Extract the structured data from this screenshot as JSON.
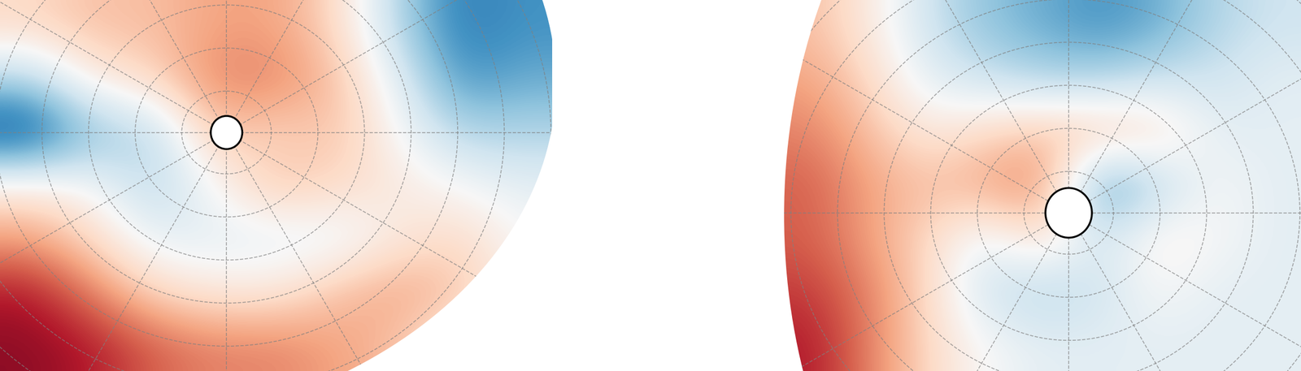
{
  "chart_data": [
    {
      "type": "heatmap",
      "grid": true,
      "tick_labels": false,
      "clim": [
        -1,
        1
      ],
      "cells": [
        [
          0.2,
          0.3,
          0.3,
          0.4,
          0.4,
          0.2,
          -0.3,
          -0.7,
          -0.6
        ],
        [
          -0.3,
          0.1,
          0.2,
          0.5,
          0.5,
          0.3,
          -0.1,
          -0.6,
          -0.5
        ],
        [
          -0.9,
          -0.4,
          -0.3,
          0.3,
          0.2,
          0.3,
          0.0,
          -0.3,
          -0.3
        ],
        [
          0.1,
          0.0,
          -0.3,
          0.0,
          0.3,
          0.2,
          0.1,
          0.0,
          -0.1
        ],
        [
          0.4,
          0.2,
          -0.1,
          -0.1,
          -0.1,
          -0.1,
          0.1,
          0.2,
          0.0
        ],
        [
          0.8,
          0.5,
          0.2,
          0.1,
          0.1,
          0.3,
          0.4,
          0.3,
          0.0
        ],
        [
          0.9,
          0.8,
          0.6,
          0.5,
          0.5,
          0.4,
          0.3,
          0.0,
          0.0
        ]
      ]
    },
    {
      "type": "heatmap",
      "grid": true,
      "tick_labels": false,
      "clim": [
        -1,
        1
      ],
      "cells": [
        [
          0.3,
          0.1,
          -0.2,
          -0.4,
          -0.5,
          -0.6,
          -0.5,
          -0.3,
          -0.2
        ],
        [
          0.4,
          0.2,
          -0.1,
          -0.2,
          -0.3,
          -0.3,
          -0.2,
          -0.2,
          -0.1
        ],
        [
          0.5,
          0.3,
          0.1,
          0.2,
          0.3,
          0.3,
          0.2,
          -0.1,
          -0.1
        ],
        [
          0.6,
          0.4,
          0.3,
          0.4,
          0.5,
          -0.6,
          -0.3,
          0.0,
          -0.1
        ],
        [
          0.6,
          0.4,
          0.2,
          -0.1,
          0.2,
          -0.2,
          0.1,
          0.0,
          -0.1
        ],
        [
          0.7,
          0.5,
          0.2,
          -0.2,
          -0.3,
          -0.2,
          0.0,
          -0.1,
          -0.1
        ],
        [
          0.8,
          0.5,
          0.2,
          0.0,
          -0.1,
          -0.1,
          -0.1,
          -0.1,
          -0.1
        ]
      ]
    }
  ]
}
